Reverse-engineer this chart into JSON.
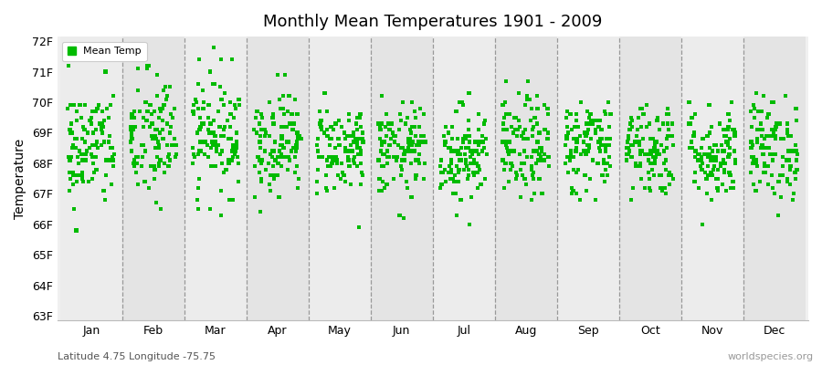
{
  "title": "Monthly Mean Temperatures 1901 - 2009",
  "ylabel": "Temperature",
  "xlabel_bottom": "Latitude 4.75 Longitude -75.75",
  "watermark": "worldspecies.org",
  "legend_label": "Mean Temp",
  "ylim_min": 63.0,
  "ylim_max": 72.0,
  "ytick_labels": [
    "63F",
    "64F",
    "65F",
    "66F",
    "67F",
    "68F",
    "69F",
    "70F",
    "71F",
    "72F"
  ],
  "months": [
    "Jan",
    "Feb",
    "Mar",
    "Apr",
    "May",
    "Jun",
    "Jul",
    "Aug",
    "Sep",
    "Oct",
    "Nov",
    "Dec"
  ],
  "dot_color": "#00bb00",
  "bg_color": "#f0f0f0",
  "marker": "s",
  "marker_size": 3,
  "seed": 42,
  "n_years": 109,
  "monthly_means": [
    68.5,
    68.8,
    69.0,
    68.7,
    68.5,
    68.4,
    68.3,
    68.5,
    68.6,
    68.5,
    68.3,
    68.5
  ],
  "monthly_stds": [
    1.0,
    1.1,
    1.0,
    0.85,
    0.75,
    0.75,
    0.8,
    0.85,
    0.8,
    0.8,
    0.8,
    0.85
  ],
  "title_fontsize": 13,
  "axis_label_fontsize": 9,
  "ylabel_fontsize": 10
}
